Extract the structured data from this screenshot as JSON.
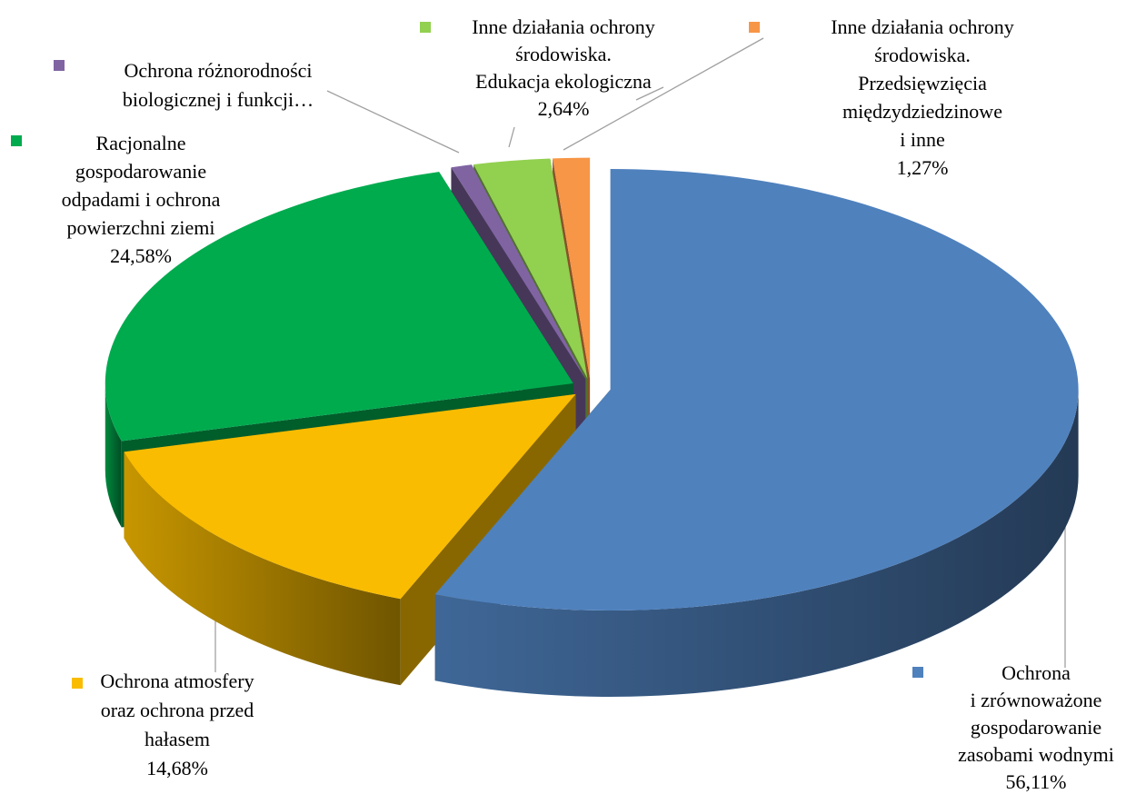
{
  "chart_data": {
    "type": "pie3d",
    "categories": [
      "Ochrona\ni zrównoważone\ngospodarowanie\nzasobami wodnymi",
      "Ochrona atmosfery\noraz ochrona przed\nhałasem",
      "Racjonalne\ngospodarowanie\nodpadami i ochrona\npowierzchni ziemi",
      "Ochrona różnorodności\nbiologicznej i funkcji…",
      "Inne działania ochrony\nśrodowiska.\nEdukacja ekologiczna",
      "Inne działania ochrony\nśrodowiska.\nPrzedsięwzięcia\nmiędzydziedzinowe\ni inne"
    ],
    "values": [
      56.11,
      14.68,
      24.58,
      0.72,
      2.64,
      1.27
    ],
    "value_labels": [
      "56,11%",
      "14,68%",
      "24,58%",
      null,
      "2,64%",
      "1,27%"
    ],
    "colors": [
      "#4f81bd",
      "#f9bc00",
      "#00ab4e",
      "#8064a2",
      "#92d050",
      "#f79646"
    ]
  }
}
